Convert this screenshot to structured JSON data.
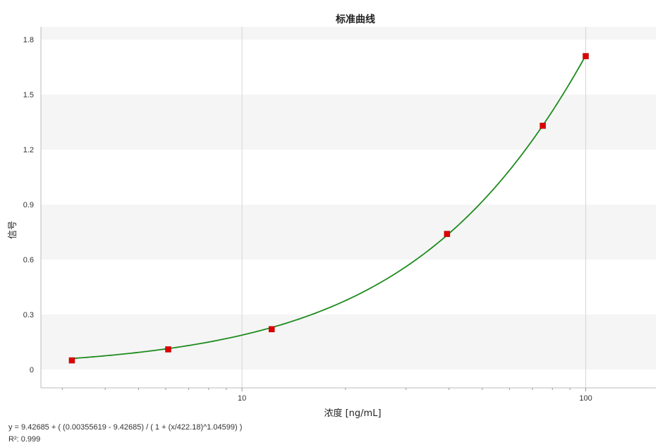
{
  "chart_data": {
    "type": "scatter",
    "title": "标准曲线",
    "xlabel": "浓度 [ng/mL]",
    "ylabel": "信号",
    "x_scale": "log",
    "xlim": [
      2.6,
      160
    ],
    "ylim": [
      -0.1,
      1.87
    ],
    "x_ticks": [
      10,
      100
    ],
    "x_tick_labels": [
      "10",
      "100"
    ],
    "y_ticks": [
      0,
      0.3,
      0.6,
      0.9,
      1.2,
      1.5,
      1.8
    ],
    "y_tick_labels": [
      "0",
      "0.3",
      "0.6",
      "0.9",
      "1.2",
      "1.5",
      "1.8"
    ],
    "grid": true,
    "series": [
      {
        "kind": "points",
        "x": [
          3.2,
          6.1,
          12.2,
          39.5,
          75,
          100
        ],
        "y": [
          0.05,
          0.11,
          0.22,
          0.74,
          1.33,
          1.71
        ],
        "color": "#dd0000"
      },
      {
        "kind": "fit_curve",
        "color": "#1e8b1e",
        "model": "4PL",
        "A": 0.00355619,
        "D": 9.42685,
        "C": 422.18,
        "B": 1.04599
      }
    ],
    "equation": "y = 9.42685 + ( (0.00355619 - 9.42685) / ( 1 + (x/422.18)^1.04599) )",
    "r_squared": "R²: 0.999"
  }
}
